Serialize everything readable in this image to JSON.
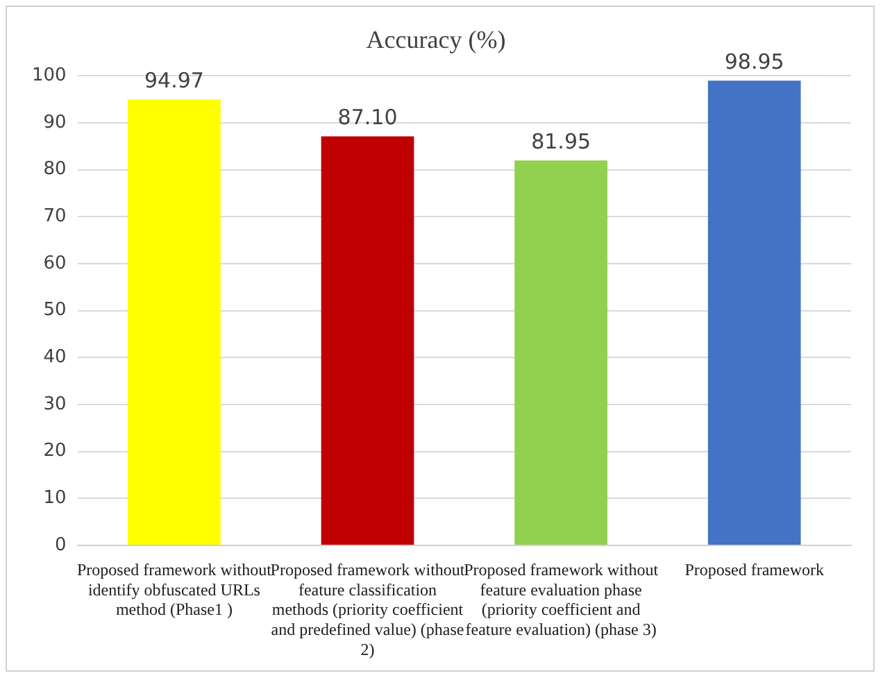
{
  "chart_data": {
    "type": "bar",
    "title": "Accuracy (%)",
    "categories": [
      "Proposed framework without identify obfuscated URLs method (Phase1 )",
      "Proposed framework without feature classification methods (priority coefficient and predefined value) (phase 2)",
      "Proposed framework without feature evaluation phase (priority coefficient and feature evaluation) (phase 3)",
      "Proposed framework"
    ],
    "values": [
      94.97,
      87.1,
      81.95,
      98.95
    ],
    "colors": [
      "#ffff00",
      "#c00000",
      "#92d050",
      "#4472c4"
    ],
    "value_labels": [
      "94.97",
      "87.10",
      "81.95",
      "98.95"
    ],
    "ylim": [
      0,
      100
    ],
    "yticks": [
      0,
      10,
      20,
      30,
      40,
      50,
      60,
      70,
      80,
      90,
      100
    ],
    "grid": "y",
    "legend": false
  }
}
